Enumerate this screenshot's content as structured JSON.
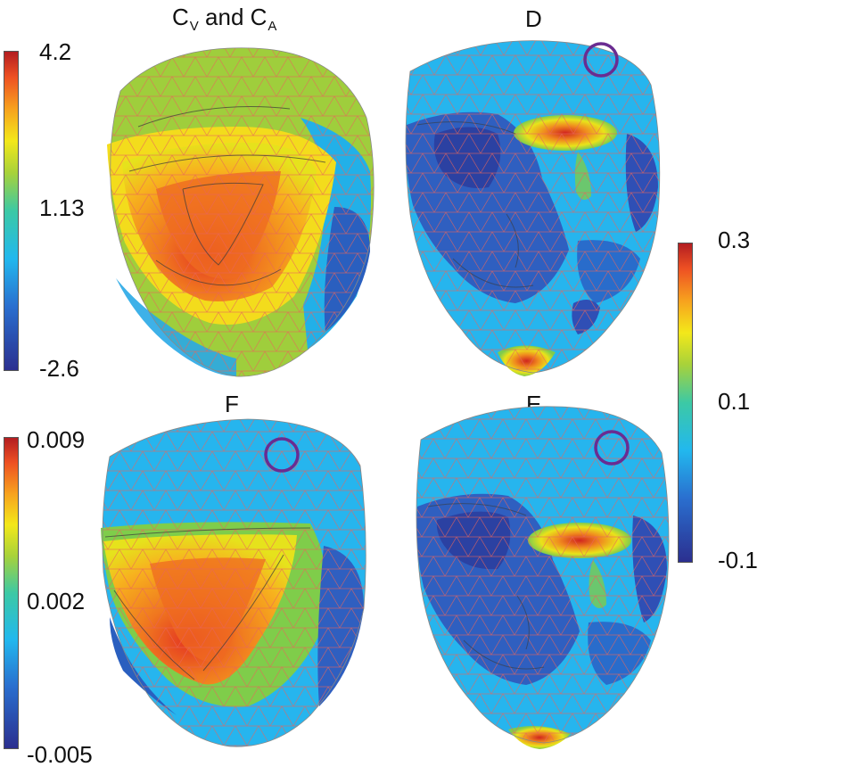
{
  "panels": {
    "cv_ca": {
      "title_main": "C",
      "sub1": "V",
      "mid": " and C",
      "sub2": "A"
    },
    "d": {
      "title": "D"
    },
    "f": {
      "title": "F"
    },
    "e": {
      "title": "E"
    }
  },
  "colorbars": {
    "top_left": {
      "max": "4.2",
      "mid": "1.13",
      "min": "-2.6"
    },
    "bottom_left": {
      "max": "0.009",
      "mid": "0.002",
      "min": "-0.005"
    },
    "right": {
      "max": "0.3",
      "mid": "0.1",
      "min": "-0.1"
    }
  },
  "colors": {
    "jet": [
      "#2b2f8f",
      "#2a6fcf",
      "#22b8ee",
      "#3cc9a5",
      "#a8d23a",
      "#f3e81a",
      "#f7a21e",
      "#ee5123",
      "#b31d21"
    ],
    "mesh": "#e8645a",
    "contour": "#3a3a3a",
    "marker": "#6a2c91"
  }
}
